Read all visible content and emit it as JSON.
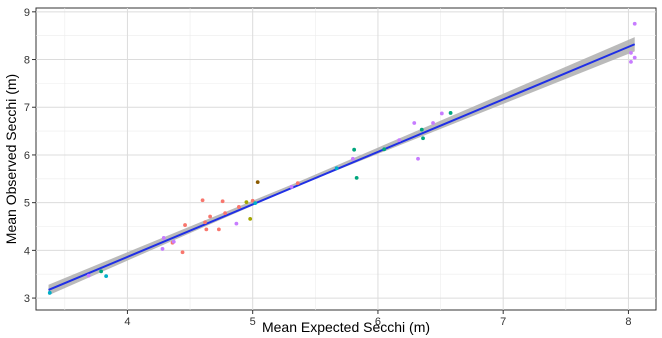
{
  "chart_data": {
    "type": "scatter",
    "title": "",
    "xlabel": "Mean Expected Secchi (m)",
    "ylabel": "Mean Observed Secchi (m)",
    "xlim": [
      3.27,
      8.22
    ],
    "ylim": [
      2.75,
      9.08
    ],
    "x_ticks": [
      4,
      5,
      6,
      7,
      8
    ],
    "y_ticks": [
      3,
      4,
      5,
      6,
      7,
      8,
      9
    ],
    "grid": true,
    "legend": "none",
    "fit_line": {
      "x": [
        3.37,
        8.05
      ],
      "y": [
        3.17,
        8.32
      ],
      "color": "#1f2fe6"
    },
    "confidence_band": {
      "x": [
        3.37,
        5.35,
        8.05
      ],
      "lower": [
        3.06,
        5.34,
        8.17
      ],
      "upper": [
        3.28,
        5.42,
        8.47
      ],
      "color": "#b3b3b3"
    },
    "colors": {
      "red": "#f8766d",
      "olive": "#a3a500",
      "green": "#00a67d",
      "teal": "#00b0c8",
      "purple": "#c77cff",
      "brown": "#8b5a00"
    },
    "points": [
      {
        "x": 3.38,
        "y": 3.11,
        "color": "teal"
      },
      {
        "x": 3.69,
        "y": 3.47,
        "color": "purple"
      },
      {
        "x": 3.79,
        "y": 3.56,
        "color": "green"
      },
      {
        "x": 3.83,
        "y": 3.46,
        "color": "teal"
      },
      {
        "x": 4.28,
        "y": 4.03,
        "color": "purple"
      },
      {
        "x": 4.29,
        "y": 4.26,
        "color": "purple"
      },
      {
        "x": 4.36,
        "y": 4.16,
        "color": "red"
      },
      {
        "x": 4.37,
        "y": 4.18,
        "color": "purple"
      },
      {
        "x": 4.44,
        "y": 3.96,
        "color": "red"
      },
      {
        "x": 4.46,
        "y": 4.53,
        "color": "red"
      },
      {
        "x": 4.6,
        "y": 5.05,
        "color": "red"
      },
      {
        "x": 4.62,
        "y": 4.59,
        "color": "red"
      },
      {
        "x": 4.63,
        "y": 4.44,
        "color": "red"
      },
      {
        "x": 4.66,
        "y": 4.71,
        "color": "red"
      },
      {
        "x": 4.73,
        "y": 4.44,
        "color": "red"
      },
      {
        "x": 4.76,
        "y": 5.03,
        "color": "red"
      },
      {
        "x": 4.78,
        "y": 4.78,
        "color": "red"
      },
      {
        "x": 4.87,
        "y": 4.56,
        "color": "purple"
      },
      {
        "x": 4.89,
        "y": 4.91,
        "color": "red"
      },
      {
        "x": 4.95,
        "y": 5.01,
        "color": "olive"
      },
      {
        "x": 4.98,
        "y": 4.66,
        "color": "olive"
      },
      {
        "x": 5.0,
        "y": 5.04,
        "color": "red"
      },
      {
        "x": 5.02,
        "y": 4.99,
        "color": "teal"
      },
      {
        "x": 5.04,
        "y": 5.43,
        "color": "brown"
      },
      {
        "x": 5.31,
        "y": 5.33,
        "color": "purple"
      },
      {
        "x": 5.36,
        "y": 5.41,
        "color": "red"
      },
      {
        "x": 5.67,
        "y": 5.72,
        "color": "teal"
      },
      {
        "x": 5.8,
        "y": 5.92,
        "color": "purple"
      },
      {
        "x": 5.81,
        "y": 6.11,
        "color": "green"
      },
      {
        "x": 5.83,
        "y": 5.52,
        "color": "green"
      },
      {
        "x": 6.05,
        "y": 6.12,
        "color": "green"
      },
      {
        "x": 6.17,
        "y": 6.31,
        "color": "purple"
      },
      {
        "x": 6.29,
        "y": 6.67,
        "color": "purple"
      },
      {
        "x": 6.32,
        "y": 5.92,
        "color": "purple"
      },
      {
        "x": 6.35,
        "y": 6.53,
        "color": "green"
      },
      {
        "x": 6.36,
        "y": 6.35,
        "color": "green"
      },
      {
        "x": 6.44,
        "y": 6.67,
        "color": "purple"
      },
      {
        "x": 6.51,
        "y": 6.87,
        "color": "purple"
      },
      {
        "x": 6.58,
        "y": 6.88,
        "color": "green"
      },
      {
        "x": 8.02,
        "y": 7.95,
        "color": "purple"
      },
      {
        "x": 8.02,
        "y": 8.14,
        "color": "purple"
      },
      {
        "x": 8.05,
        "y": 8.04,
        "color": "purple"
      },
      {
        "x": 8.05,
        "y": 8.75,
        "color": "purple"
      }
    ]
  }
}
